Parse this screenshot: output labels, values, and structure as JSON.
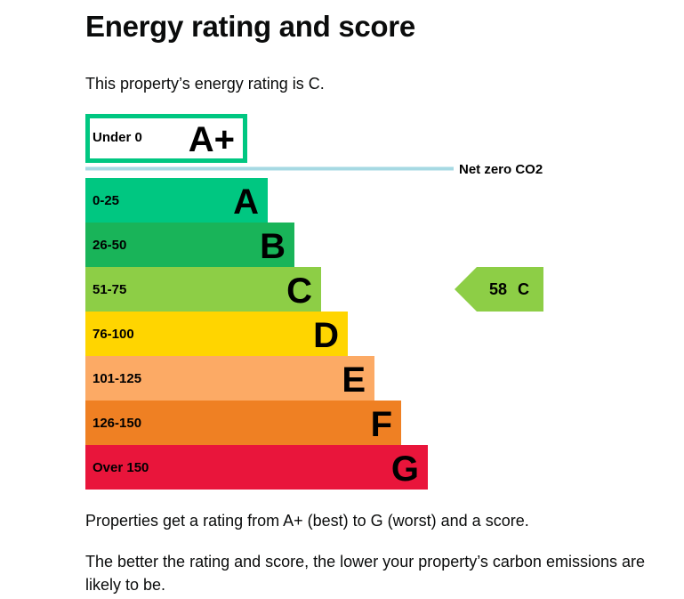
{
  "page": {
    "title": "Energy rating and score",
    "intro": "This property’s energy rating is C.",
    "explanation_1": "Properties get a rating from A+ (best) to G (worst) and a score.",
    "explanation_2": "The better the rating and score, the lower your property’s carbon emissions are likely to be."
  },
  "chart_data": {
    "type": "bar",
    "bands": [
      {
        "letter": "A+",
        "range": "Under 0",
        "color": "#ffffff",
        "border_color": "#00c781"
      },
      {
        "letter": "A",
        "range": "0-25",
        "color": "#00c781"
      },
      {
        "letter": "B",
        "range": "26-50",
        "color": "#19b459"
      },
      {
        "letter": "C",
        "range": "51-75",
        "color": "#8dce46"
      },
      {
        "letter": "D",
        "range": "76-100",
        "color": "#ffd500"
      },
      {
        "letter": "E",
        "range": "101-125",
        "color": "#fcaa65"
      },
      {
        "letter": "F",
        "range": "126-150",
        "color": "#ef8023"
      },
      {
        "letter": "G",
        "range": "Over 150",
        "color": "#e9153b"
      }
    ],
    "net_zero_label": "Net zero CO2",
    "net_zero_line_color": "#a6d9e3",
    "current": {
      "score": 58,
      "letter": "C",
      "color": "#8dce46"
    }
  }
}
